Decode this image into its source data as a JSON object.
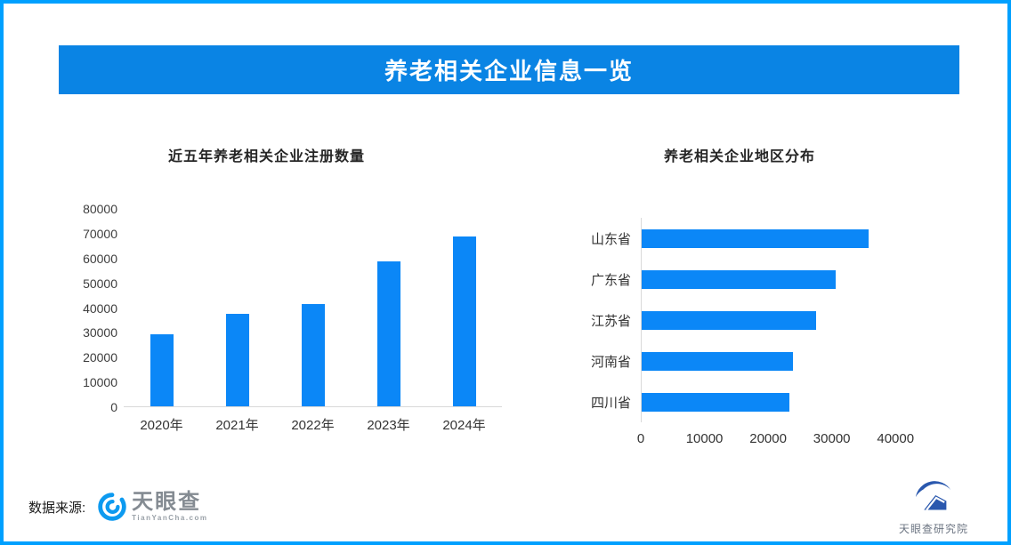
{
  "header": {
    "title": "养老相关企业信息一览"
  },
  "colors": {
    "page_border": "#00a0ff",
    "banner_bg": "#0a84e4",
    "bar_blue": "#0b87f7",
    "axis_line": "#d9d9d9"
  },
  "chart_data": [
    {
      "type": "bar",
      "title": "近五年养老相关企业注册数量",
      "categories": [
        "2020年",
        "2021年",
        "2022年",
        "2023年",
        "2024年"
      ],
      "values": [
        29000,
        37300,
        41300,
        58600,
        68700
      ],
      "ylim": [
        0,
        80000
      ],
      "yticks": [
        0,
        10000,
        20000,
        30000,
        40000,
        50000,
        60000,
        70000,
        80000
      ],
      "xlabel": "",
      "ylabel": "",
      "grid": false,
      "legend": "none",
      "bar_color": "#0b87f7"
    },
    {
      "type": "bar-horizontal",
      "title": "养老相关企业地区分布",
      "categories": [
        "山东省",
        "广东省",
        "江苏省",
        "河南省",
        "四川省"
      ],
      "values": [
        35600,
        30400,
        27400,
        23800,
        23200
      ],
      "xlim": [
        0,
        45000
      ],
      "xticks": [
        0,
        10000,
        20000,
        30000,
        40000
      ],
      "xlabel": "",
      "ylabel": "",
      "grid": false,
      "legend": "none",
      "bar_color": "#0b87f7"
    }
  ],
  "footer": {
    "source_label": "数据来源:",
    "tianyancha": {
      "icon": "tianyancha-swirl-icon",
      "brand": "天眼查",
      "domain": "TianYanCha.com"
    },
    "research": {
      "icon": "tianyancha-research-icon",
      "brand": "天眼查研究院"
    }
  }
}
